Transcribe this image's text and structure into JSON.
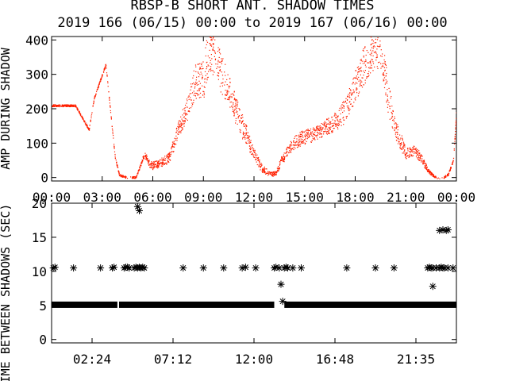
{
  "title": "RBSP-B SHORT ANT. SHADOW TIMES",
  "subtitle": "2019 166 (06/15) 00:00 to 2019 167 (06/16) 00:00",
  "colors": {
    "background": "#ffffff",
    "axes": "#000000",
    "top_series": "#ff2000",
    "bottom_series": "#000000"
  },
  "chart_data": [
    {
      "type": "scatter",
      "panel": "top",
      "ylabel": "AMP DURING SHADOW",
      "xlim": [
        0,
        24
      ],
      "ylim": [
        -10,
        410
      ],
      "x_ticks": [
        0,
        3,
        6,
        9,
        12,
        15,
        18,
        21,
        24
      ],
      "x_tick_labels": [
        "00:00",
        "03:00",
        "06:00",
        "09:00",
        "12:00",
        "15:00",
        "18:00",
        "21:00",
        "00:00"
      ],
      "y_ticks": [
        0,
        100,
        200,
        300,
        400
      ],
      "y_tick_labels": [
        "0",
        "100",
        "200",
        "300",
        "400"
      ],
      "grid": false,
      "legend": "none",
      "x_unit": "hours",
      "series": [
        {
          "x": [
            1.4,
            2.2,
            2.5,
            3.2,
            3.5,
            3.75,
            4.0,
            4.5,
            5.0,
            5.2,
            5.5,
            5.8,
            6.0,
            6.5,
            7.0,
            7.5,
            8.0,
            8.5,
            9.0,
            9.3,
            9.6,
            10.0,
            10.5,
            11.0,
            11.5,
            12.0,
            12.5,
            13.0,
            13.3,
            13.6,
            14.0,
            14.5,
            15.0,
            15.5,
            16.0,
            16.5,
            17.0,
            17.5,
            18.0,
            18.5,
            19.0,
            19.5,
            20.0,
            20.5,
            21.0,
            21.5,
            22.0,
            22.3,
            22.8,
            23.2,
            23.5,
            23.8,
            24.0
          ],
          "y": [
            210,
            140,
            230,
            330,
            180,
            60,
            8,
            0,
            2,
            30,
            70,
            40,
            35,
            45,
            60,
            140,
            200,
            290,
            310,
            400,
            390,
            330,
            260,
            190,
            130,
            70,
            25,
            10,
            15,
            50,
            80,
            110,
            120,
            125,
            140,
            155,
            170,
            205,
            270,
            330,
            380,
            400,
            220,
            130,
            70,
            80,
            50,
            20,
            0,
            0,
            10,
            50,
            200
          ],
          "lower_spread": [
            0,
            0,
            0,
            0,
            0,
            0,
            0,
            0,
            0,
            2,
            8,
            10,
            10,
            10,
            15,
            25,
            35,
            60,
            80,
            100,
            90,
            80,
            60,
            45,
            35,
            20,
            10,
            5,
            5,
            10,
            15,
            20,
            20,
            20,
            22,
            25,
            30,
            35,
            45,
            60,
            70,
            80,
            50,
            30,
            15,
            15,
            10,
            5,
            0,
            0,
            0,
            0,
            0
          ],
          "upper_spread": [
            0,
            0,
            0,
            0,
            0,
            0,
            0,
            0,
            0,
            2,
            8,
            10,
            10,
            10,
            15,
            25,
            35,
            40,
            50,
            40,
            40,
            40,
            40,
            35,
            25,
            15,
            10,
            5,
            5,
            10,
            15,
            20,
            20,
            20,
            22,
            25,
            30,
            35,
            45,
            50,
            40,
            30,
            40,
            30,
            15,
            15,
            10,
            5,
            0,
            0,
            0,
            0,
            0
          ]
        }
      ]
    },
    {
      "type": "scatter",
      "panel": "bottom",
      "ylabel": "TIME BETWEEN SHADOWS (SEC)",
      "xlim": [
        0,
        24
      ],
      "ylim": [
        -0.5,
        20
      ],
      "x_ticks": [
        2.4,
        7.2,
        12.0,
        16.8,
        21.6
      ],
      "x_tick_labels": [
        "02:24",
        "07:12",
        "12:00",
        "16:48",
        "21:35"
      ],
      "y_ticks": [
        0,
        5,
        10,
        15,
        20
      ],
      "y_tick_labels": [
        "0",
        "5",
        "10",
        "15",
        "20"
      ],
      "grid": false,
      "legend": "none",
      "x_unit": "hours",
      "series": [
        {
          "baseline": {
            "y": 5.1,
            "x_ranges": [
              [
                0,
                3.9
              ],
              [
                4.0,
                13.2
              ],
              [
                13.8,
                24
              ]
            ]
          },
          "x": [
            0.1,
            0.2,
            1.3,
            2.9,
            3.6,
            3.7,
            4.3,
            4.4,
            4.5,
            4.6,
            4.9,
            5.0,
            5.1,
            5.2,
            5.3,
            5.4,
            5.5,
            5.1,
            5.2,
            7.8,
            9.0,
            10.2,
            11.3,
            11.5,
            12.1,
            13.2,
            13.3,
            13.5,
            13.8,
            13.9,
            14.0,
            14.3,
            14.8,
            17.5,
            19.2,
            20.3,
            22.3,
            22.4,
            22.5,
            22.6,
            22.8,
            23.0,
            23.1,
            23.2,
            23.3,
            23.5,
            23.8,
            23.0,
            23.2,
            23.4,
            23.5,
            22.6,
            13.6,
            13.7
          ],
          "y": [
            10.5,
            10.6,
            10.5,
            10.5,
            10.5,
            10.6,
            10.5,
            10.6,
            10.6,
            10.5,
            10.5,
            10.6,
            10.5,
            10.6,
            10.5,
            10.6,
            10.5,
            19.5,
            18.9,
            10.5,
            10.5,
            10.5,
            10.5,
            10.6,
            10.5,
            10.5,
            10.6,
            10.5,
            10.5,
            10.6,
            10.5,
            10.5,
            10.5,
            10.5,
            10.5,
            10.5,
            10.5,
            10.6,
            10.5,
            10.5,
            10.5,
            10.5,
            10.6,
            10.5,
            10.5,
            10.5,
            10.5,
            16.0,
            16.1,
            16.0,
            16.1,
            7.8,
            8.1,
            5.6
          ]
        }
      ]
    }
  ]
}
